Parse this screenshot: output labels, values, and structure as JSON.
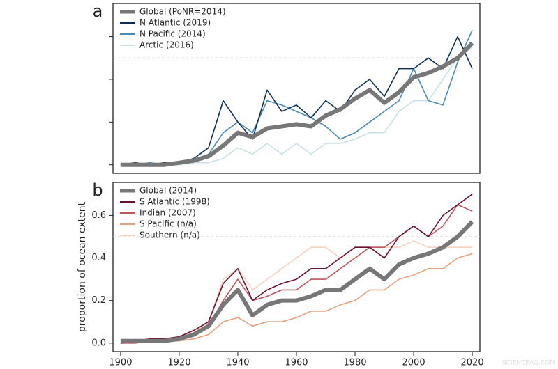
{
  "chart_data": [
    {
      "type": "line",
      "panel_label": "a",
      "x": [
        1900,
        1905,
        1910,
        1915,
        1920,
        1925,
        1930,
        1935,
        1940,
        1945,
        1950,
        1955,
        1960,
        1965,
        1970,
        1975,
        1980,
        1985,
        1990,
        1995,
        2000,
        2005,
        2010,
        2015,
        2020
      ],
      "xlim": [
        1897.4,
        2022.6
      ],
      "ylim": [
        -0.04,
        0.755
      ],
      "yticks": [
        0,
        0.2,
        0.4,
        0.6
      ],
      "tick_labels": false,
      "hline": 0.5,
      "series": [
        {
          "name": "Global (PoNR=2014)",
          "color": "#777777",
          "values": [
            0,
            0,
            0,
            0,
            0.01,
            0.02,
            0.04,
            0.09,
            0.15,
            0.13,
            0.17,
            0.18,
            0.19,
            0.18,
            0.23,
            0.26,
            0.31,
            0.35,
            0.29,
            0.34,
            0.41,
            0.43,
            0.46,
            0.5,
            0.57
          ]
        },
        {
          "name": "N Atlantic (2019)",
          "color": "#0d2f57",
          "values": [
            0,
            0.01,
            0,
            0.01,
            0.01,
            0.03,
            0.08,
            0.3,
            0.2,
            0.12,
            0.35,
            0.25,
            0.28,
            0.22,
            0.3,
            0.25,
            0.35,
            0.4,
            0.32,
            0.45,
            0.45,
            0.5,
            0.45,
            0.6,
            0.45
          ]
        },
        {
          "name": "N Pacific (2014)",
          "color": "#4a8ab5",
          "values": [
            0,
            0,
            0.01,
            0,
            0.01,
            0.02,
            0.05,
            0.15,
            0.2,
            0.15,
            0.3,
            0.28,
            0.25,
            0.22,
            0.18,
            0.12,
            0.15,
            0.2,
            0.25,
            0.3,
            0.45,
            0.3,
            0.28,
            0.48,
            0.63
          ]
        },
        {
          "name": "Arctic (2016)",
          "color": "#c8e0ea",
          "values": [
            0,
            0,
            0,
            0,
            0,
            0.01,
            0.01,
            0.03,
            0.08,
            0.05,
            0.1,
            0.05,
            0.1,
            0.05,
            0.1,
            0.1,
            0.12,
            0.15,
            0.15,
            0.25,
            0.3,
            0.3,
            0.4,
            0.5,
            0.55
          ]
        }
      ]
    },
    {
      "type": "line",
      "panel_label": "b",
      "y_label": "proportion of ocean extent",
      "x": [
        1900,
        1905,
        1910,
        1915,
        1920,
        1925,
        1930,
        1935,
        1940,
        1945,
        1950,
        1955,
        1960,
        1965,
        1970,
        1975,
        1980,
        1985,
        1990,
        1995,
        2000,
        2005,
        2010,
        2015,
        2020
      ],
      "xlim": [
        1897.4,
        2022.6
      ],
      "ylim": [
        -0.04,
        0.755
      ],
      "yticks": [
        {
          "value": 0,
          "label": "0.0"
        },
        0.2,
        0.4,
        0.6
      ],
      "tick_labels": true,
      "hline": 0.5,
      "xticks": [
        1900,
        1920,
        1940,
        1960,
        1980,
        2000,
        2020
      ],
      "series": [
        {
          "name": "Global (2014)",
          "color": "#777777",
          "values": [
            0.01,
            0.01,
            0.01,
            0.01,
            0.02,
            0.04,
            0.08,
            0.18,
            0.25,
            0.13,
            0.18,
            0.2,
            0.2,
            0.22,
            0.25,
            0.25,
            0.3,
            0.35,
            0.3,
            0.37,
            0.4,
            0.42,
            0.45,
            0.5,
            0.57
          ]
        },
        {
          "name": "S Atlantic (1998)",
          "color": "#6b0f2e",
          "values": [
            0,
            0.01,
            0.02,
            0.02,
            0.03,
            0.06,
            0.1,
            0.28,
            0.35,
            0.2,
            0.25,
            0.28,
            0.3,
            0.35,
            0.35,
            0.4,
            0.45,
            0.45,
            0.4,
            0.5,
            0.55,
            0.5,
            0.6,
            0.65,
            0.7
          ]
        },
        {
          "name": "Indian (2007)",
          "color": "#c0545a",
          "values": [
            0,
            0,
            0.01,
            0.01,
            0.02,
            0.04,
            0.08,
            0.2,
            0.3,
            0.2,
            0.22,
            0.25,
            0.25,
            0.3,
            0.3,
            0.35,
            0.4,
            0.45,
            0.45,
            0.5,
            0.55,
            0.5,
            0.55,
            0.65,
            0.62
          ]
        },
        {
          "name": "S Pacific (n/a)",
          "color": "#e8a07c",
          "values": [
            0,
            0,
            0.01,
            0.01,
            0.01,
            0.02,
            0.04,
            0.1,
            0.12,
            0.08,
            0.1,
            0.1,
            0.12,
            0.15,
            0.15,
            0.18,
            0.2,
            0.25,
            0.25,
            0.3,
            0.32,
            0.35,
            0.35,
            0.4,
            0.42
          ]
        },
        {
          "name": "Southern (n/a)",
          "color": "#f6d2bf",
          "values": [
            0,
            0.01,
            0.01,
            0.01,
            0.03,
            0.05,
            0.1,
            0.3,
            0.35,
            0.25,
            0.3,
            0.35,
            0.4,
            0.45,
            0.45,
            0.4,
            0.4,
            0.45,
            0.45,
            0.45,
            0.48,
            0.45,
            0.45,
            0.45,
            0.45
          ]
        }
      ]
    }
  ],
  "watermark": "SCIENCEAQ.COM"
}
